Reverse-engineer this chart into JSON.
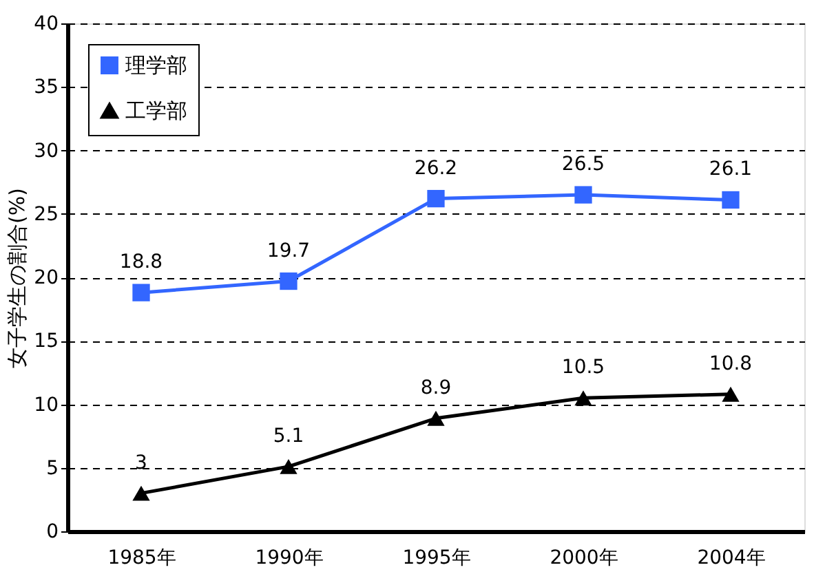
{
  "chart_data": {
    "type": "line",
    "ylabel": "女子学生の割合(%)",
    "categories": [
      "1985年",
      "1990年",
      "1995年",
      "2000年",
      "2004年"
    ],
    "series": [
      {
        "name": "理学部",
        "color": "#3366ff",
        "marker": "square",
        "values": [
          18.8,
          19.7,
          26.2,
          26.5,
          26.1
        ]
      },
      {
        "name": "工学部",
        "color": "#000000",
        "marker": "triangle",
        "values": [
          3,
          5.1,
          8.9,
          10.5,
          10.8
        ]
      }
    ],
    "ylim": [
      0,
      40
    ],
    "yticks": [
      0,
      5,
      10,
      15,
      20,
      25,
      30,
      35,
      40
    ],
    "grid": "y",
    "legend": "top left",
    "data_labels": true,
    "line_style": "solid"
  }
}
